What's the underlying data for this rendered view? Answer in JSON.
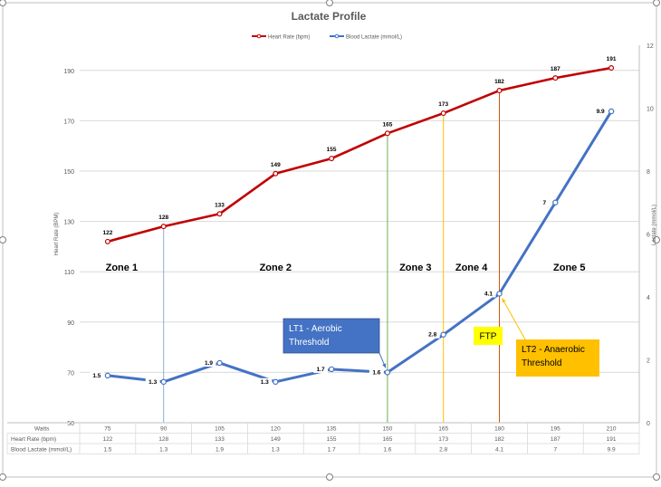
{
  "chart_data": {
    "type": "line",
    "title": "Lactate Profile",
    "categories": [
      "75",
      "90",
      "105",
      "120",
      "135",
      "150",
      "165",
      "180",
      "195",
      "210"
    ],
    "x_row_label": "Watts",
    "series": [
      {
        "name": "Heart Rate (bpm)",
        "axis": "left",
        "color": "#c00000",
        "values": [
          122,
          128,
          133,
          149,
          155,
          165,
          173,
          182,
          187,
          191
        ]
      },
      {
        "name": "Blood Lactate (mmol/L)",
        "axis": "right",
        "color": "#4472c4",
        "values": [
          1.5,
          1.3,
          1.9,
          1.3,
          1.7,
          1.6,
          2.8,
          4.1,
          7,
          9.9
        ]
      }
    ],
    "ylabel": "Heart Rate (BPM)",
    "y2label": "Lactate (mmol/L)",
    "ylim": [
      50,
      200
    ],
    "yticks": [
      50,
      70,
      90,
      110,
      130,
      150,
      170,
      190
    ],
    "y2lim": [
      0,
      12
    ],
    "y2ticks": [
      0,
      2,
      4,
      6,
      8,
      10,
      12
    ],
    "grid": true,
    "legend_position": "top",
    "zones": [
      "Zone 1",
      "Zone 2",
      "Zone 3",
      "Zone 4",
      "Zone 5"
    ],
    "threshold_markers": [
      {
        "category": "90",
        "color": "#8eaadb"
      },
      {
        "category": "150",
        "color": "#70ad47"
      },
      {
        "category": "165",
        "color": "#ffc000"
      },
      {
        "category": "180",
        "color": "#c55a11"
      }
    ],
    "callouts": [
      {
        "id": "lt1",
        "text": [
          "LT1 - Aerobic",
          "Threshold"
        ],
        "fill": "#4472c4",
        "text_color": "#ffffff",
        "points_to": "150"
      },
      {
        "id": "ftp",
        "text": [
          "FTP"
        ],
        "fill": "#ffff00",
        "text_color": "#000000",
        "points_to": "180"
      },
      {
        "id": "lt2",
        "text": [
          "LT2 - Anaerobic",
          "Threshold"
        ],
        "fill": "#ffc000",
        "text_color": "#000000",
        "points_to": "180"
      }
    ],
    "data_table": [
      {
        "label": "Watts",
        "values": [
          "75",
          "90",
          "105",
          "120",
          "135",
          "150",
          "165",
          "180",
          "195",
          "210"
        ]
      },
      {
        "label": "Heart Rate (bpm)",
        "values": [
          "122",
          "128",
          "133",
          "149",
          "155",
          "165",
          "173",
          "182",
          "187",
          "191"
        ]
      },
      {
        "label": "Blood Lactate (mmol/L)",
        "values": [
          "1.5",
          "1.3",
          "1.9",
          "1.3",
          "1.7",
          "1.6",
          "2.8",
          "4.1",
          "7",
          "9.9"
        ]
      }
    ]
  }
}
